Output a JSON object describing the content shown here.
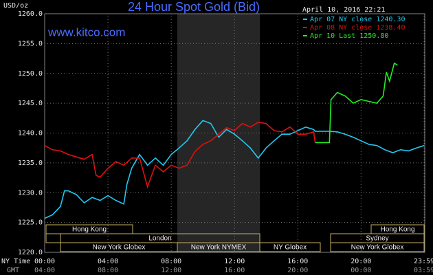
{
  "chart_data": {
    "type": "line",
    "title": "24 Hour Spot Gold (Bid)",
    "site": "www.kitco.com",
    "timestamp": "April 10, 2016 22:21",
    "y_label": "USD/oz",
    "x_row_labels": [
      "NY Time",
      "GMT"
    ],
    "xlim": [
      0,
      23.983
    ],
    "ylim": [
      1220,
      1260
    ],
    "xticks": [
      {
        "value": 0,
        "label": "00:00"
      },
      {
        "value": 4,
        "label": "04:00"
      },
      {
        "value": 8,
        "label": "08:00"
      },
      {
        "value": 12,
        "label": "12:00"
      },
      {
        "value": 16,
        "label": "16:00"
      },
      {
        "value": 20,
        "label": "20:00"
      },
      {
        "value": 23.983,
        "label": "23:59"
      }
    ],
    "gmt_labels": [
      "04:00",
      "08:00",
      "12:00",
      "16:00",
      "20:00",
      "00:00",
      "03:59"
    ],
    "yticks": [
      {
        "value": 1220,
        "label": "1220.0"
      },
      {
        "value": 1225,
        "label": "1225.0"
      },
      {
        "value": 1230,
        "label": "1230.0"
      },
      {
        "value": 1235,
        "label": "1235.0"
      },
      {
        "value": 1240,
        "label": "1240.0"
      },
      {
        "value": 1245,
        "label": "1245.0"
      },
      {
        "value": 1250,
        "label": "1250.0"
      },
      {
        "value": 1255,
        "label": "1255.0"
      },
      {
        "value": 1260,
        "label": "1260.0"
      }
    ],
    "grid": true,
    "sessions": [
      "Hong Kong",
      "Hong Kong",
      "London",
      "Sydney",
      "New York Globex",
      "New York NYMEX",
      "NY Globex",
      "New York Globex"
    ],
    "series": [
      {
        "name": "Apr 07 NY close 1240.30",
        "color": "#22c8f0",
        "x": [
          0,
          0.5,
          1,
          1.25,
          1.5,
          2,
          2.5,
          3,
          3.5,
          4,
          4.5,
          5,
          5.2,
          5.5,
          6,
          6.5,
          7,
          7.5,
          8,
          8.5,
          9,
          9.5,
          10,
          10.5,
          11,
          11.5,
          12,
          12.5,
          13,
          13.5,
          14,
          14.5,
          15,
          15.5,
          16,
          16.5,
          17,
          17.1,
          18,
          18.5,
          19,
          19.5,
          20,
          20.5,
          21,
          21.5,
          22,
          22.5,
          23,
          23.5,
          23.983
        ],
        "values": [
          1225.7,
          1226.3,
          1227.7,
          1230.3,
          1230.3,
          1229.7,
          1228.3,
          1229.2,
          1228.7,
          1229.5,
          1228.7,
          1228.1,
          1231.4,
          1234.1,
          1236.4,
          1234.6,
          1235.8,
          1234.6,
          1236.4,
          1237.5,
          1238.7,
          1240.6,
          1242.1,
          1241.6,
          1239.3,
          1240.6,
          1239.8,
          1238.7,
          1237.5,
          1235.8,
          1237.5,
          1238.7,
          1239.8,
          1239.8,
          1240.4,
          1241,
          1240.6,
          1240.3,
          1240.3,
          1240.2,
          1239.8,
          1239.3,
          1238.7,
          1238.1,
          1237.9,
          1237.2,
          1236.7,
          1237.2,
          1237,
          1237.5,
          1237.9
        ]
      },
      {
        "name": "Apr 08 NY close 1238.40",
        "color": "#e01010",
        "x": [
          0,
          0.5,
          1,
          1.5,
          2,
          2.5,
          3,
          3.25,
          3.5,
          4,
          4.5,
          5,
          5.5,
          6,
          6.5,
          7,
          7.5,
          8,
          8.5,
          9,
          9.5,
          10,
          10.5,
          11,
          11.5,
          12,
          12.5,
          13,
          13.5,
          14,
          14.5,
          15,
          15.5,
          16,
          16.5,
          17,
          17.1
        ],
        "values": [
          1237.9,
          1237.2,
          1237,
          1236.4,
          1236,
          1235.6,
          1236.4,
          1232.9,
          1232.6,
          1234.1,
          1235.2,
          1234.6,
          1235.8,
          1235.8,
          1231,
          1234.6,
          1233.5,
          1234.6,
          1234.1,
          1234.6,
          1236.9,
          1238.1,
          1238.7,
          1239.8,
          1240.9,
          1240.4,
          1241.6,
          1241,
          1241.8,
          1241.6,
          1240.4,
          1240.2,
          1241,
          1239.8,
          1239.8,
          1240.2,
          1238.4
        ]
      },
      {
        "name": "Apr 10 Last 1250.80",
        "color": "#22ee22",
        "x": [
          17.1,
          18,
          18.1,
          18.5,
          19,
          19.5,
          20,
          20.5,
          21,
          21.4,
          21.6,
          21.8,
          22.1,
          22.3
        ],
        "values": [
          1238.4,
          1238.4,
          1245.6,
          1246.8,
          1246.2,
          1245,
          1245.6,
          1245.3,
          1245,
          1246.2,
          1250.2,
          1248.7,
          1251.7,
          1251.4
        ]
      }
    ]
  }
}
